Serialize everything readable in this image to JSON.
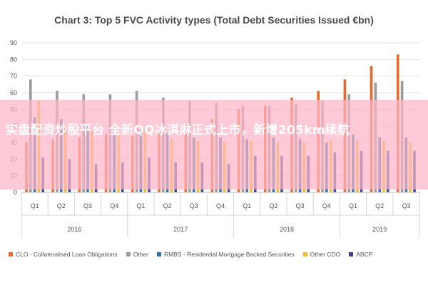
{
  "banner": {
    "text": "实盘配资炒股平台 全新QQ冰淇淋正式上市，新增205km续航"
  },
  "chart_data": {
    "type": "bar",
    "title": "Chart 3: Top 5 FVC Activity types (Total Debt Securities Issued €bn)",
    "xlabel": "",
    "ylabel": "",
    "ylim": [
      0,
      90
    ],
    "yticks": [
      0,
      10,
      20,
      30,
      40,
      50,
      60,
      70,
      80,
      90
    ],
    "grid": true,
    "legend_position": "bottom",
    "categories": [
      "Q1",
      "Q2",
      "Q3",
      "Q4",
      "Q1",
      "Q2",
      "Q3",
      "Q4",
      "Q1",
      "Q2",
      "Q3",
      "Q4",
      "Q1",
      "Q2",
      "Q3"
    ],
    "groups": [
      {
        "label": "2016",
        "count": 4
      },
      {
        "label": "2017",
        "count": 4
      },
      {
        "label": "2018",
        "count": 4
      },
      {
        "label": "2019",
        "count": 3
      }
    ],
    "series": [
      {
        "name": "CLO - Collateralised Loan Obligations",
        "color": "#e8692b",
        "values": [
          30,
          32,
          33,
          35,
          34,
          37,
          40,
          44,
          50,
          52,
          57,
          61,
          68,
          76,
          83
        ]
      },
      {
        "name": "Other",
        "color": "#9a9a9a",
        "values": [
          68,
          61,
          59,
          59,
          61,
          57,
          55,
          54,
          52,
          52,
          53,
          55,
          59,
          66,
          67
        ]
      },
      {
        "name": "RMBS - Residential Mortgage Backed Securities",
        "color": "#2e6fa8",
        "values": [
          45,
          44,
          40,
          38,
          38,
          36,
          33,
          33,
          32,
          33,
          32,
          30,
          35,
          33,
          33
        ]
      },
      {
        "name": "Other CDO",
        "color": "#f5bd1f",
        "values": [
          55,
          40,
          37,
          35,
          39,
          32,
          31,
          30,
          31,
          30,
          30,
          31,
          31,
          31,
          30
        ]
      },
      {
        "name": "ABCP",
        "color": "#3b3f8f",
        "values": [
          21,
          20,
          17,
          18,
          21,
          18,
          18,
          17,
          22,
          22,
          22,
          24,
          25,
          25,
          25
        ]
      }
    ]
  }
}
